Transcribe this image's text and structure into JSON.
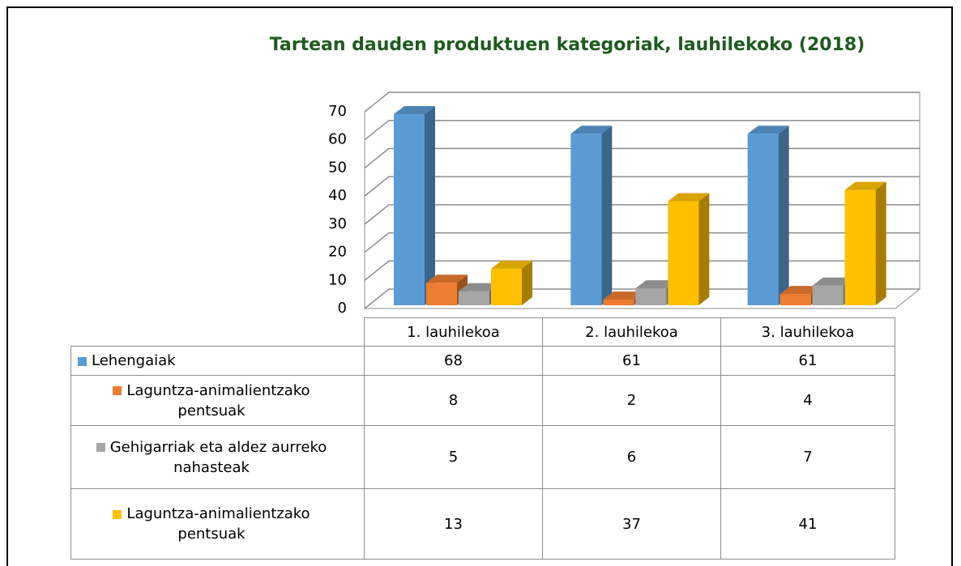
{
  "chart_data": {
    "type": "bar3d",
    "title": "Tartean dauden produktuen kategoriak, lauhilekoko (2018)",
    "categories": [
      "1. lauhilekoa",
      "2. lauhilekoa",
      "3. lauhilekoa"
    ],
    "series": [
      {
        "name": "Lehengaiak",
        "color": "#5b9bd5",
        "values": [
          68,
          61,
          61
        ]
      },
      {
        "name": "Laguntza-animalientzako pentsuak",
        "color": "#ed7d31",
        "values": [
          8,
          2,
          4
        ]
      },
      {
        "name": "Gehigarriak eta aldez aurreko nahasteak",
        "color": "#a5a5a5",
        "values": [
          5,
          6,
          7
        ]
      },
      {
        "name": "Laguntza-animalientzako pentsuak",
        "color": "#ffc000",
        "values": [
          13,
          37,
          41
        ]
      }
    ],
    "ylim": [
      0,
      70
    ],
    "yticks": [
      0,
      10,
      20,
      30,
      40,
      50,
      60,
      70
    ],
    "grid": true,
    "title_color": "#1e5b1e"
  }
}
